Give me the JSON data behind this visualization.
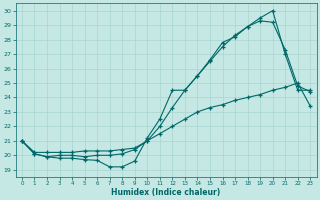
{
  "background_color": "#c5e8e5",
  "grid_color": "#a8d4d0",
  "line_color": "#006868",
  "xlabel": "Humidex (Indice chaleur)",
  "ylabel_ticks": [
    19,
    20,
    21,
    22,
    23,
    24,
    25,
    26,
    27,
    28,
    29,
    30
  ],
  "xticks": [
    0,
    1,
    2,
    3,
    4,
    5,
    6,
    7,
    8,
    9,
    10,
    11,
    12,
    13,
    14,
    15,
    16,
    17,
    18,
    19,
    20,
    21,
    22,
    23
  ],
  "xlim": [
    -0.5,
    23.5
  ],
  "ylim": [
    18.5,
    30.5
  ],
  "series1_x": [
    0,
    1,
    2,
    3,
    4,
    5,
    6,
    7,
    8,
    9,
    10,
    11,
    12,
    13,
    14,
    15,
    16,
    17,
    18,
    19,
    20,
    21,
    22,
    23
  ],
  "series1_y": [
    21.0,
    20.1,
    19.9,
    19.8,
    19.8,
    19.7,
    19.65,
    19.2,
    19.2,
    19.6,
    21.2,
    22.5,
    24.5,
    24.5,
    25.5,
    26.6,
    27.8,
    28.2,
    28.9,
    29.5,
    30.0,
    27.0,
    24.5,
    24.5
  ],
  "series2_x": [
    0,
    1,
    2,
    3,
    4,
    5,
    6,
    7,
    8,
    9,
    10,
    11,
    12,
    13,
    14,
    15,
    16,
    17,
    18,
    19,
    20,
    21,
    22,
    23
  ],
  "series2_y": [
    21.0,
    20.1,
    19.9,
    20.0,
    20.0,
    19.9,
    20.0,
    20.0,
    20.1,
    20.4,
    21.0,
    22.0,
    23.3,
    24.5,
    25.5,
    26.5,
    27.5,
    28.3,
    28.9,
    29.3,
    29.2,
    27.3,
    24.8,
    24.4
  ],
  "series3_x": [
    0,
    1,
    2,
    3,
    4,
    5,
    6,
    7,
    8,
    9,
    10,
    11,
    12,
    13,
    14,
    15,
    16,
    17,
    18,
    19,
    20,
    21,
    22,
    23
  ],
  "series3_y": [
    21.0,
    20.2,
    20.2,
    20.2,
    20.2,
    20.3,
    20.3,
    20.3,
    20.4,
    20.5,
    21.0,
    21.5,
    22.0,
    22.5,
    23.0,
    23.3,
    23.5,
    23.8,
    24.0,
    24.2,
    24.5,
    24.7,
    25.0,
    23.4
  ]
}
